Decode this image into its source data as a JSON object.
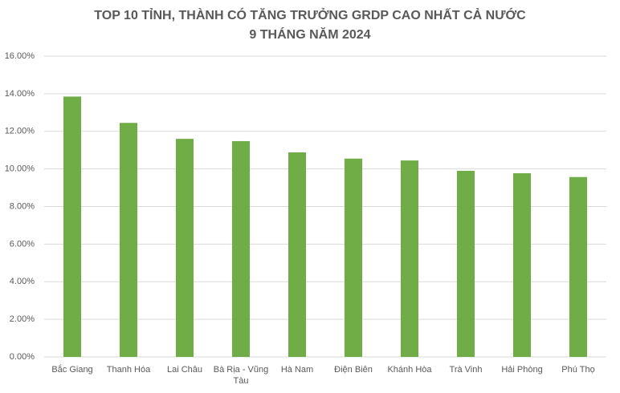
{
  "chart_data": {
    "type": "bar",
    "title": "TOP 10 TỈNH, THÀNH CÓ TĂNG TRƯỞNG GRDP CAO NHẤT CẢ NƯỚC",
    "subtitle": "9 THÁNG NĂM 2024",
    "categories": [
      "Bắc Giang",
      "Thanh Hóa",
      "Lai Châu",
      "Bà Rịa - Vũng Tàu",
      "Hà Nam",
      "Điện Biên",
      "Khánh Hòa",
      "Trà Vinh",
      "Hải Phòng",
      "Phú Thọ"
    ],
    "values": [
      13.85,
      12.45,
      11.6,
      11.48,
      10.88,
      10.55,
      10.45,
      9.9,
      9.77,
      9.57
    ],
    "color": "#70ad47",
    "ylim": [
      0,
      16
    ],
    "yticks": [
      {
        "value": 0,
        "label": "0.00%"
      },
      {
        "value": 2,
        "label": "2.00%"
      },
      {
        "value": 4,
        "label": "4.00%"
      },
      {
        "value": 6,
        "label": "6.00%"
      },
      {
        "value": 8,
        "label": "8.00%"
      },
      {
        "value": 10,
        "label": "10.00%"
      },
      {
        "value": 12,
        "label": "12.00%"
      },
      {
        "value": 14,
        "label": "14.00%"
      },
      {
        "value": 16,
        "label": "16.00%"
      }
    ],
    "grid": true
  }
}
